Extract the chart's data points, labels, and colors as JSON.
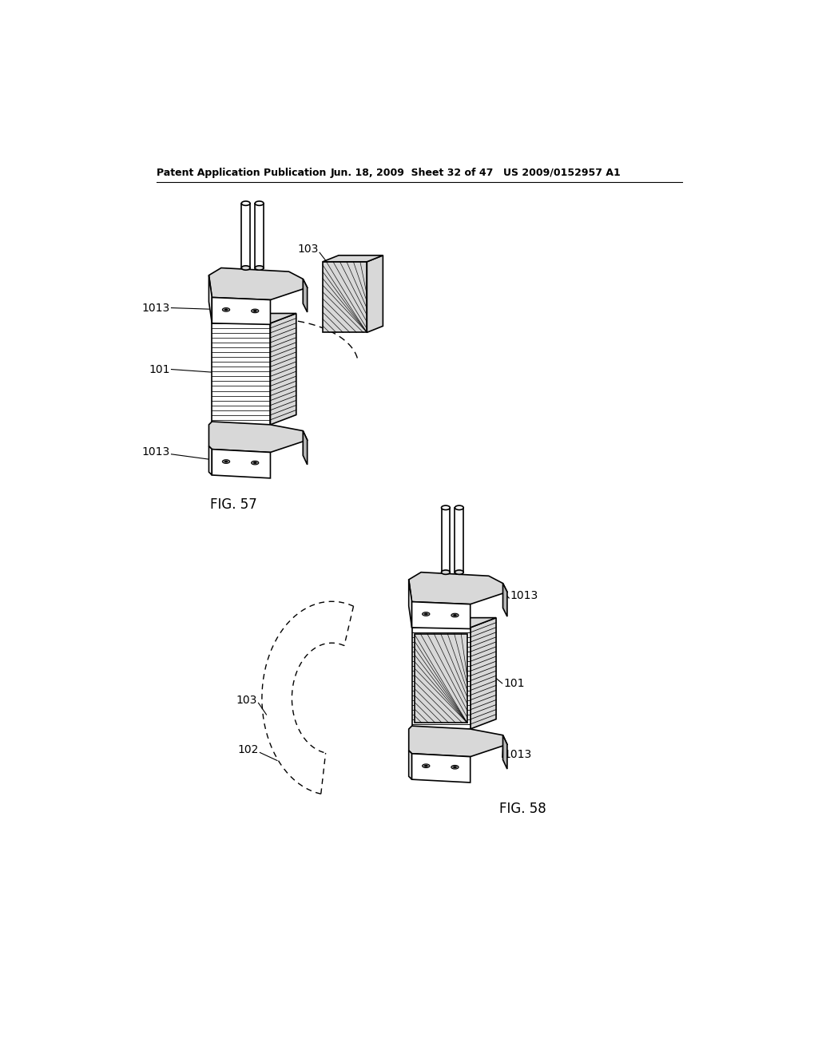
{
  "background_color": "#ffffff",
  "header_left": "Patent Application Publication",
  "header_center": "Jun. 18, 2009  Sheet 32 of 47",
  "header_right": "US 2009/0152957 A1",
  "fig57_label": "FIG. 57",
  "fig58_label": "FIG. 58",
  "line_color": "#000000",
  "gray_light": "#d8d8d8",
  "gray_mid": "#b8b8b8",
  "gray_dark": "#909090",
  "lw": 1.2,
  "lw_lam": 0.55,
  "header_fontsize": 9,
  "label_fontsize": 10,
  "fig_label_fontsize": 12
}
